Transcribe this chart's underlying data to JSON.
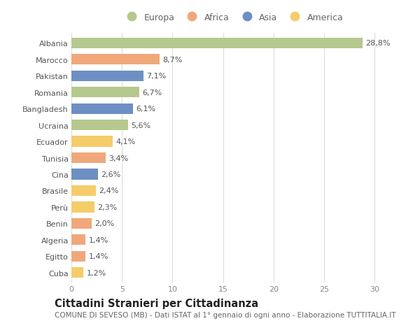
{
  "countries": [
    "Albania",
    "Marocco",
    "Pakistan",
    "Romania",
    "Bangladesh",
    "Ucraina",
    "Ecuador",
    "Tunisia",
    "Cina",
    "Brasile",
    "Perù",
    "Benin",
    "Algeria",
    "Egitto",
    "Cuba"
  ],
  "values": [
    28.8,
    8.7,
    7.1,
    6.7,
    6.1,
    5.6,
    4.1,
    3.4,
    2.6,
    2.4,
    2.3,
    2.0,
    1.4,
    1.4,
    1.2
  ],
  "labels": [
    "28,8%",
    "8,7%",
    "7,1%",
    "6,7%",
    "6,1%",
    "5,6%",
    "4,1%",
    "3,4%",
    "2,6%",
    "2,4%",
    "2,3%",
    "2,0%",
    "1,4%",
    "1,4%",
    "1,2%"
  ],
  "continents": [
    "Europa",
    "Africa",
    "Asia",
    "Europa",
    "Asia",
    "Europa",
    "America",
    "Africa",
    "Asia",
    "America",
    "America",
    "Africa",
    "Africa",
    "Africa",
    "America"
  ],
  "continent_colors": {
    "Europa": "#b5c98e",
    "Africa": "#f0a87a",
    "Asia": "#6d8fc4",
    "America": "#f5cc6a"
  },
  "legend_order": [
    "Europa",
    "Africa",
    "Asia",
    "America"
  ],
  "title": "Cittadini Stranieri per Cittadinanza",
  "subtitle": "COMUNE DI SEVESO (MB) - Dati ISTAT al 1° gennaio di ogni anno - Elaborazione TUTTITALIA.IT",
  "xlim": [
    0,
    32
  ],
  "xticks": [
    0,
    5,
    10,
    15,
    20,
    25,
    30
  ],
  "background_color": "#ffffff",
  "grid_color": "#dddddd",
  "bar_height": 0.65,
  "label_fontsize": 8.0,
  "title_fontsize": 10.5,
  "subtitle_fontsize": 7.5,
  "tick_fontsize": 8.0,
  "legend_fontsize": 9.0
}
